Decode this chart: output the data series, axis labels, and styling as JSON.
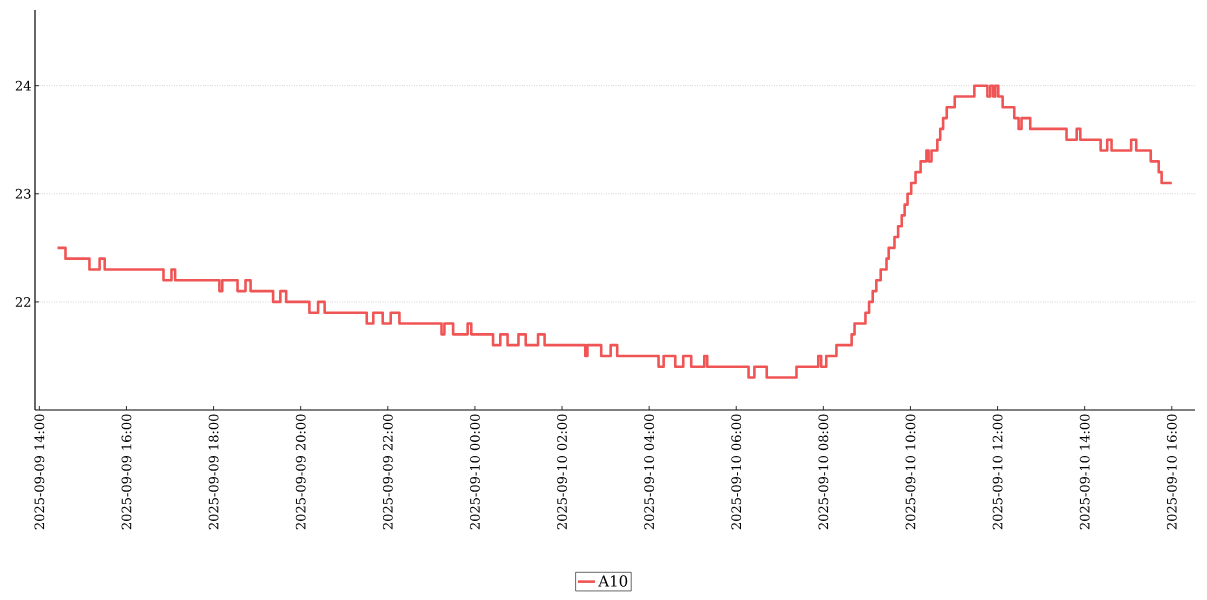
{
  "chart_data": {
    "type": "step",
    "grid": "y",
    "legend": "bottom",
    "marker": "none",
    "line_style": "solid",
    "xlim": [
      "2025-09-09T13:54",
      "2025-09-10T16:32"
    ],
    "ylim": [
      21.0,
      24.7
    ],
    "yticks": [
      22,
      23,
      24
    ],
    "xticks": [
      {
        "value": "2025-09-09T14:00",
        "label": "2025-09-09 14:00"
      },
      {
        "value": "2025-09-09T16:00",
        "label": "2025-09-09 16:00"
      },
      {
        "value": "2025-09-09T18:00",
        "label": "2025-09-09 18:00"
      },
      {
        "value": "2025-09-09T20:00",
        "label": "2025-09-09 20:00"
      },
      {
        "value": "2025-09-09T22:00",
        "label": "2025-09-09 22:00"
      },
      {
        "value": "2025-09-10T00:00",
        "label": "2025-09-10 00:00"
      },
      {
        "value": "2025-09-10T02:00",
        "label": "2025-09-10 02:00"
      },
      {
        "value": "2025-09-10T04:00",
        "label": "2025-09-10 04:00"
      },
      {
        "value": "2025-09-10T06:00",
        "label": "2025-09-10 06:00"
      },
      {
        "value": "2025-09-10T08:00",
        "label": "2025-09-10 08:00"
      },
      {
        "value": "2025-09-10T10:00",
        "label": "2025-09-10 10:00"
      },
      {
        "value": "2025-09-10T12:00",
        "label": "2025-09-10 12:00"
      },
      {
        "value": "2025-09-10T14:00",
        "label": "2025-09-10 14:00"
      },
      {
        "value": "2025-09-10T16:00",
        "label": "2025-09-10 16:00"
      }
    ],
    "x": [
      "2025-09-09T14:25",
      "2025-09-09T14:36",
      "2025-09-09T15:09",
      "2025-09-09T15:23",
      "2025-09-09T15:30",
      "2025-09-09T16:51",
      "2025-09-09T17:02",
      "2025-09-09T17:07",
      "2025-09-09T18:08",
      "2025-09-09T18:12",
      "2025-09-09T18:33",
      "2025-09-09T18:44",
      "2025-09-09T18:51",
      "2025-09-09T19:22",
      "2025-09-09T19:32",
      "2025-09-09T19:40",
      "2025-09-09T20:12",
      "2025-09-09T20:24",
      "2025-09-09T20:33",
      "2025-09-09T21:31",
      "2025-09-09T21:40",
      "2025-09-09T21:53",
      "2025-09-09T22:04",
      "2025-09-09T22:16",
      "2025-09-09T23:14",
      "2025-09-09T23:18",
      "2025-09-09T23:30",
      "2025-09-09T23:50",
      "2025-09-09T23:55",
      "2025-09-10T00:25",
      "2025-09-10T00:35",
      "2025-09-10T00:45",
      "2025-09-10T01:00",
      "2025-09-10T01:10",
      "2025-09-10T01:27",
      "2025-09-10T01:36",
      "2025-09-10T02:32",
      "2025-09-10T02:35",
      "2025-09-10T02:54",
      "2025-09-10T03:07",
      "2025-09-10T03:16",
      "2025-09-10T04:13",
      "2025-09-10T04:20",
      "2025-09-10T04:36",
      "2025-09-10T04:47",
      "2025-09-10T04:58",
      "2025-09-10T05:16",
      "2025-09-10T05:20",
      "2025-09-10T06:17",
      "2025-09-10T06:25",
      "2025-09-10T06:42",
      "2025-09-10T07:23",
      "2025-09-10T07:53",
      "2025-09-10T07:57",
      "2025-09-10T08:04",
      "2025-09-10T08:18",
      "2025-09-10T08:39",
      "2025-09-10T08:43",
      "2025-09-10T08:58",
      "2025-09-10T09:03",
      "2025-09-10T09:08",
      "2025-09-10T09:13",
      "2025-09-10T09:19",
      "2025-09-10T09:27",
      "2025-09-10T09:30",
      "2025-09-10T09:38",
      "2025-09-10T09:43",
      "2025-09-10T09:48",
      "2025-09-10T09:52",
      "2025-09-10T09:56",
      "2025-09-10T10:01",
      "2025-09-10T10:07",
      "2025-09-10T10:14",
      "2025-09-10T10:22",
      "2025-09-10T10:25",
      "2025-09-10T10:29",
      "2025-09-10T10:37",
      "2025-09-10T10:41",
      "2025-09-10T10:45",
      "2025-09-10T10:50",
      "2025-09-10T11:01",
      "2025-09-10T11:28",
      "2025-09-10T11:46",
      "2025-09-10T11:50",
      "2025-09-10T11:54",
      "2025-09-10T11:57",
      "2025-09-10T12:01",
      "2025-09-10T12:07",
      "2025-09-10T12:23",
      "2025-09-10T12:29",
      "2025-09-10T12:33",
      "2025-09-10T12:45",
      "2025-09-10T13:35",
      "2025-09-10T13:49",
      "2025-09-10T13:54",
      "2025-09-10T14:22",
      "2025-09-10T14:31",
      "2025-09-10T14:37",
      "2025-09-10T15:04",
      "2025-09-10T15:11",
      "2025-09-10T15:31",
      "2025-09-10T15:42",
      "2025-09-10T15:46",
      "2025-09-10T16:00"
    ],
    "series": [
      {
        "name": "A10",
        "color": "#f05555",
        "values": [
          22.5,
          22.4,
          22.3,
          22.4,
          22.3,
          22.2,
          22.3,
          22.2,
          22.1,
          22.2,
          22.1,
          22.2,
          22.1,
          22.0,
          22.1,
          22.0,
          21.9,
          22.0,
          21.9,
          21.8,
          21.9,
          21.8,
          21.9,
          21.8,
          21.7,
          21.8,
          21.7,
          21.8,
          21.7,
          21.6,
          21.7,
          21.6,
          21.7,
          21.6,
          21.7,
          21.6,
          21.5,
          21.6,
          21.5,
          21.6,
          21.5,
          21.4,
          21.5,
          21.4,
          21.5,
          21.4,
          21.5,
          21.4,
          21.3,
          21.4,
          21.3,
          21.4,
          21.5,
          21.4,
          21.5,
          21.6,
          21.7,
          21.8,
          21.9,
          22.0,
          22.1,
          22.2,
          22.3,
          22.4,
          22.5,
          22.6,
          22.7,
          22.8,
          22.9,
          23.0,
          23.1,
          23.2,
          23.3,
          23.4,
          23.3,
          23.4,
          23.5,
          23.6,
          23.7,
          23.8,
          23.9,
          24.0,
          23.9,
          24.0,
          23.9,
          24.0,
          23.9,
          23.8,
          23.7,
          23.6,
          23.7,
          23.6,
          23.5,
          23.6,
          23.5,
          23.4,
          23.5,
          23.4,
          23.5,
          23.4,
          23.3,
          23.2,
          23.1,
          23.1
        ]
      }
    ]
  }
}
